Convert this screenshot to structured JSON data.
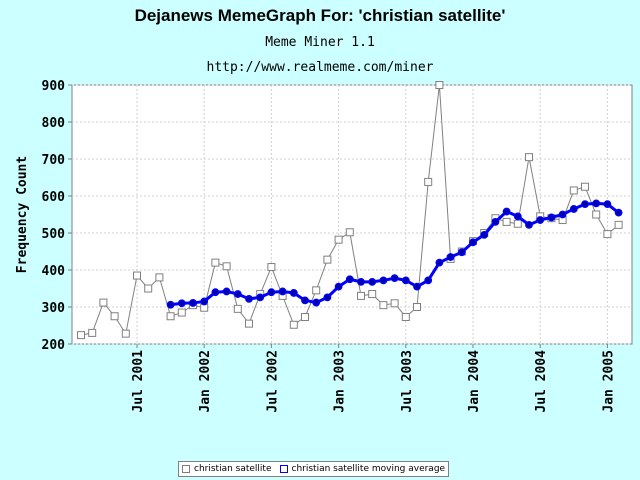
{
  "title": "Dejanews MemeGraph For: 'christian satellite'",
  "subtitle": "Meme Miner 1.1",
  "url": "http://www.realmeme.com/miner",
  "colors": {
    "background": "#ccffff",
    "raw": "#808080",
    "average": "#0000ff"
  },
  "chart_data": {
    "type": "line",
    "title": "Dejanews MemeGraph For: 'christian satellite'",
    "ylabel": "Frequency Count",
    "xlabel": "",
    "ylim": [
      200,
      900
    ],
    "yticks": [
      200,
      300,
      400,
      500,
      600,
      700,
      800,
      900
    ],
    "xticks": [
      "Jul 2001",
      "Jan 2002",
      "Jul 2002",
      "Jan 2003",
      "Jul 2003",
      "Jan 2004",
      "Jul 2004",
      "Jan 2005"
    ],
    "grid": true,
    "legend_position": "bottom",
    "x": [
      "2001-02",
      "2001-03",
      "2001-04",
      "2001-05",
      "2001-06",
      "2001-07",
      "2001-08",
      "2001-09",
      "2001-10",
      "2001-11",
      "2001-12",
      "2002-01",
      "2002-02",
      "2002-03",
      "2002-04",
      "2002-05",
      "2002-06",
      "2002-07",
      "2002-08",
      "2002-09",
      "2002-10",
      "2002-11",
      "2002-12",
      "2003-01",
      "2003-02",
      "2003-03",
      "2003-04",
      "2003-05",
      "2003-06",
      "2003-07",
      "2003-08",
      "2003-09",
      "2003-10",
      "2003-11",
      "2003-12",
      "2004-01",
      "2004-02",
      "2004-03",
      "2004-04",
      "2004-05",
      "2004-06",
      "2004-07",
      "2004-08",
      "2004-09",
      "2004-10",
      "2004-11",
      "2004-12",
      "2005-01",
      "2005-02",
      "2005-03",
      "2005-04"
    ],
    "series": [
      {
        "name": "christian satellite",
        "color": "#808080",
        "marker": "square",
        "values": [
          224,
          230,
          312,
          275,
          228,
          385,
          350,
          380,
          275,
          285,
          305,
          298,
          420,
          410,
          295,
          255,
          335,
          408,
          330,
          252,
          273,
          345,
          428,
          482,
          502,
          330,
          335,
          305,
          310,
          273,
          300,
          638,
          900,
          430,
          450,
          478,
          500,
          540,
          530,
          525,
          705,
          545,
          540,
          535,
          615,
          625,
          550,
          497,
          522,
          null,
          null
        ]
      },
      {
        "name": "christian satellite moving average",
        "color": "#0000ff",
        "marker": "circle",
        "values": [
          null,
          null,
          null,
          null,
          null,
          null,
          null,
          null,
          306,
          310,
          311,
          315,
          340,
          342,
          335,
          322,
          326,
          340,
          342,
          338,
          318,
          312,
          326,
          355,
          375,
          368,
          368,
          372,
          378,
          372,
          355,
          372,
          420,
          435,
          448,
          475,
          495,
          530,
          558,
          545,
          522,
          535,
          542,
          550,
          565,
          578,
          580,
          578,
          555,
          null,
          null
        ]
      }
    ]
  }
}
